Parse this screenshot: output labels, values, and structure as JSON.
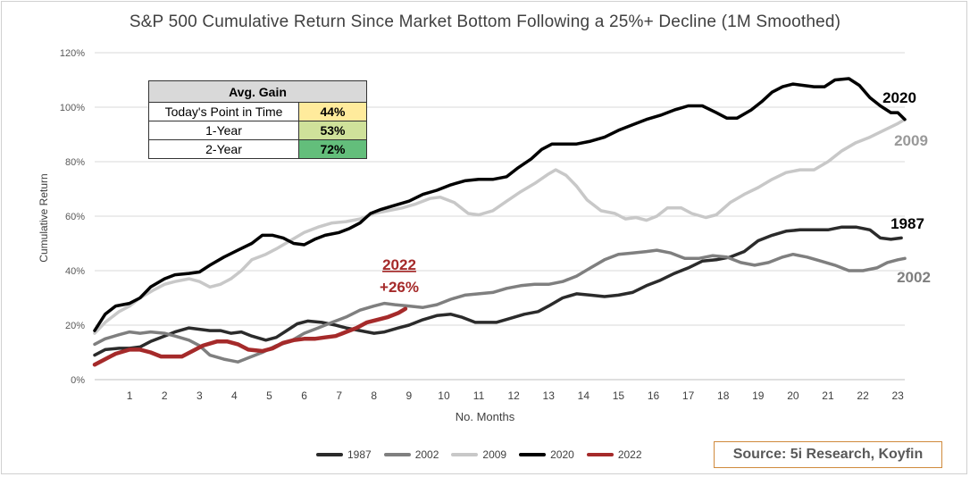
{
  "chart_data": {
    "type": "line",
    "title": "S&P 500 Cumulative Return Since Market Bottom Following a 25%+ Decline (1M Smoothed)",
    "xlabel": "No. Months",
    "ylabel": "Cumulative Return",
    "xlim": [
      0,
      23.2
    ],
    "ylim": [
      0,
      120
    ],
    "x_ticks": [
      1,
      2,
      3,
      4,
      5,
      6,
      7,
      8,
      9,
      10,
      11,
      12,
      13,
      14,
      15,
      16,
      17,
      18,
      19,
      20,
      21,
      22,
      23
    ],
    "y_ticks": [
      0,
      20,
      40,
      60,
      80,
      100,
      120
    ],
    "y_tick_labels": [
      "0%",
      "20%",
      "40%",
      "60%",
      "80%",
      "100%",
      "120%"
    ],
    "grid": "horizontal",
    "legend_position": "bottom",
    "series": [
      {
        "name": "1987",
        "color": "#2b2b2b",
        "points": [
          [
            0,
            9
          ],
          [
            0.3,
            11
          ],
          [
            0.7,
            11.5
          ],
          [
            1,
            11.5
          ],
          [
            1.3,
            12
          ],
          [
            1.6,
            14
          ],
          [
            2,
            16
          ],
          [
            2.3,
            17.5
          ],
          [
            2.7,
            19
          ],
          [
            3,
            18.5
          ],
          [
            3.3,
            18
          ],
          [
            3.6,
            18
          ],
          [
            3.9,
            17
          ],
          [
            4.2,
            17.5
          ],
          [
            4.5,
            16
          ],
          [
            4.9,
            14.5
          ],
          [
            5.2,
            15.5
          ],
          [
            5.5,
            18
          ],
          [
            5.8,
            20.5
          ],
          [
            6.1,
            21.5
          ],
          [
            6.5,
            21
          ],
          [
            6.9,
            20
          ],
          [
            7.2,
            19
          ],
          [
            7.6,
            18
          ],
          [
            8,
            17
          ],
          [
            8.3,
            17.5
          ],
          [
            8.7,
            19
          ],
          [
            9,
            20
          ],
          [
            9.4,
            22
          ],
          [
            9.8,
            23.5
          ],
          [
            10.2,
            24
          ],
          [
            10.5,
            23
          ],
          [
            10.9,
            21
          ],
          [
            11.2,
            21
          ],
          [
            11.5,
            21
          ],
          [
            11.9,
            22.5
          ],
          [
            12.3,
            24
          ],
          [
            12.7,
            25
          ],
          [
            13,
            27
          ],
          [
            13.4,
            30
          ],
          [
            13.8,
            31.5
          ],
          [
            14.2,
            31
          ],
          [
            14.6,
            30.5
          ],
          [
            15,
            31
          ],
          [
            15.4,
            32
          ],
          [
            15.8,
            34.5
          ],
          [
            16.2,
            36.5
          ],
          [
            16.6,
            39
          ],
          [
            17,
            41
          ],
          [
            17.4,
            43.5
          ],
          [
            17.8,
            44
          ],
          [
            18.2,
            45
          ],
          [
            18.6,
            47
          ],
          [
            19,
            51
          ],
          [
            19.4,
            53
          ],
          [
            19.8,
            54.5
          ],
          [
            20.2,
            55
          ],
          [
            20.6,
            55
          ],
          [
            21,
            55
          ],
          [
            21.4,
            56
          ],
          [
            21.8,
            56
          ],
          [
            22.2,
            55
          ],
          [
            22.5,
            52
          ],
          [
            22.8,
            51.5
          ],
          [
            23.1,
            52
          ]
        ]
      },
      {
        "name": "2002",
        "color": "#7f7f7f",
        "points": [
          [
            0,
            13
          ],
          [
            0.3,
            15
          ],
          [
            0.7,
            16.5
          ],
          [
            1,
            17.5
          ],
          [
            1.3,
            17
          ],
          [
            1.6,
            17.5
          ],
          [
            2,
            17
          ],
          [
            2.3,
            16
          ],
          [
            2.7,
            14.5
          ],
          [
            3,
            12.5
          ],
          [
            3.3,
            9
          ],
          [
            3.7,
            7.5
          ],
          [
            4.1,
            6.5
          ],
          [
            4.4,
            8
          ],
          [
            4.8,
            10
          ],
          [
            5.2,
            12.5
          ],
          [
            5.6,
            14
          ],
          [
            6,
            17
          ],
          [
            6.4,
            19
          ],
          [
            6.8,
            21
          ],
          [
            7.2,
            23
          ],
          [
            7.6,
            25.5
          ],
          [
            8,
            27
          ],
          [
            8.3,
            28
          ],
          [
            8.6,
            27.5
          ],
          [
            9,
            27
          ],
          [
            9.4,
            26.5
          ],
          [
            9.8,
            27.5
          ],
          [
            10.2,
            29.5
          ],
          [
            10.6,
            31
          ],
          [
            11,
            31.5
          ],
          [
            11.4,
            32
          ],
          [
            11.8,
            33.5
          ],
          [
            12.2,
            34.5
          ],
          [
            12.6,
            35
          ],
          [
            13,
            35
          ],
          [
            13.4,
            36
          ],
          [
            13.8,
            38
          ],
          [
            14.2,
            41
          ],
          [
            14.6,
            44
          ],
          [
            15,
            46
          ],
          [
            15.4,
            46.5
          ],
          [
            15.8,
            47
          ],
          [
            16.1,
            47.5
          ],
          [
            16.5,
            46.5
          ],
          [
            16.9,
            44.5
          ],
          [
            17.3,
            44.5
          ],
          [
            17.7,
            45.5
          ],
          [
            18.1,
            45
          ],
          [
            18.5,
            43
          ],
          [
            18.9,
            42
          ],
          [
            19.3,
            43
          ],
          [
            19.7,
            45
          ],
          [
            20,
            46
          ],
          [
            20.4,
            45
          ],
          [
            20.8,
            43.5
          ],
          [
            21.2,
            42
          ],
          [
            21.6,
            40
          ],
          [
            22,
            40
          ],
          [
            22.4,
            41
          ],
          [
            22.7,
            43
          ],
          [
            23,
            44
          ],
          [
            23.2,
            44.5
          ]
        ]
      },
      {
        "name": "2009",
        "color": "#c8c8c8",
        "points": [
          [
            0,
            17
          ],
          [
            0.3,
            21
          ],
          [
            0.7,
            25
          ],
          [
            1,
            27
          ],
          [
            1.3,
            30
          ],
          [
            1.7,
            33
          ],
          [
            2,
            35
          ],
          [
            2.3,
            36
          ],
          [
            2.7,
            37
          ],
          [
            3,
            36
          ],
          [
            3.3,
            34
          ],
          [
            3.6,
            35
          ],
          [
            3.9,
            37
          ],
          [
            4.2,
            40
          ],
          [
            4.5,
            44
          ],
          [
            4.9,
            46
          ],
          [
            5.2,
            48
          ],
          [
            5.6,
            51
          ],
          [
            6,
            54
          ],
          [
            6.4,
            56
          ],
          [
            6.8,
            57.5
          ],
          [
            7.2,
            58
          ],
          [
            7.6,
            59
          ],
          [
            8,
            61
          ],
          [
            8.4,
            62
          ],
          [
            8.8,
            63
          ],
          [
            9.2,
            64.5
          ],
          [
            9.6,
            66.5
          ],
          [
            9.9,
            67
          ],
          [
            10.3,
            65
          ],
          [
            10.7,
            61
          ],
          [
            11,
            60.5
          ],
          [
            11.4,
            62
          ],
          [
            11.8,
            65.5
          ],
          [
            12.2,
            69
          ],
          [
            12.6,
            72
          ],
          [
            13,
            75.5
          ],
          [
            13.2,
            77
          ],
          [
            13.5,
            75
          ],
          [
            13.8,
            71
          ],
          [
            14.1,
            66
          ],
          [
            14.5,
            62
          ],
          [
            14.9,
            61
          ],
          [
            15.2,
            59
          ],
          [
            15.5,
            59.5
          ],
          [
            15.8,
            58.5
          ],
          [
            16.1,
            60
          ],
          [
            16.4,
            63
          ],
          [
            16.8,
            63
          ],
          [
            17.1,
            61
          ],
          [
            17.5,
            59.5
          ],
          [
            17.8,
            60.5
          ],
          [
            18.2,
            65
          ],
          [
            18.6,
            68
          ],
          [
            19,
            70.5
          ],
          [
            19.4,
            73.5
          ],
          [
            19.8,
            76
          ],
          [
            20.2,
            77
          ],
          [
            20.6,
            77
          ],
          [
            21,
            80
          ],
          [
            21.4,
            84
          ],
          [
            21.8,
            87
          ],
          [
            22.2,
            89
          ],
          [
            22.6,
            91.5
          ],
          [
            23,
            94
          ],
          [
            23.2,
            95.5
          ]
        ]
      },
      {
        "name": "2020",
        "color": "#000000",
        "points": [
          [
            0,
            18
          ],
          [
            0.3,
            24
          ],
          [
            0.6,
            27
          ],
          [
            1,
            28
          ],
          [
            1.3,
            30
          ],
          [
            1.6,
            34
          ],
          [
            2,
            37
          ],
          [
            2.3,
            38.5
          ],
          [
            2.7,
            39
          ],
          [
            3,
            39.5
          ],
          [
            3.3,
            42
          ],
          [
            3.7,
            45
          ],
          [
            4.1,
            47.5
          ],
          [
            4.5,
            50
          ],
          [
            4.8,
            53
          ],
          [
            5.1,
            53
          ],
          [
            5.4,
            52
          ],
          [
            5.7,
            50
          ],
          [
            6,
            49.5
          ],
          [
            6.3,
            51.5
          ],
          [
            6.6,
            53
          ],
          [
            7,
            54
          ],
          [
            7.3,
            55.5
          ],
          [
            7.6,
            57.5
          ],
          [
            7.9,
            61
          ],
          [
            8.2,
            62.5
          ],
          [
            8.6,
            64
          ],
          [
            9,
            65.5
          ],
          [
            9.4,
            68
          ],
          [
            9.8,
            69.5
          ],
          [
            10.2,
            71.5
          ],
          [
            10.6,
            73
          ],
          [
            11,
            73.5
          ],
          [
            11.4,
            73.5
          ],
          [
            11.8,
            74.5
          ],
          [
            12.1,
            77.5
          ],
          [
            12.5,
            81
          ],
          [
            12.8,
            84.5
          ],
          [
            13.1,
            86.5
          ],
          [
            13.4,
            86.5
          ],
          [
            13.8,
            86.5
          ],
          [
            14.2,
            87.5
          ],
          [
            14.6,
            89
          ],
          [
            15,
            91.5
          ],
          [
            15.4,
            93.5
          ],
          [
            15.8,
            95.5
          ],
          [
            16.2,
            97
          ],
          [
            16.6,
            99
          ],
          [
            17,
            100.5
          ],
          [
            17.4,
            100.5
          ],
          [
            17.8,
            98
          ],
          [
            18.1,
            96
          ],
          [
            18.4,
            96
          ],
          [
            18.8,
            99
          ],
          [
            19.1,
            102
          ],
          [
            19.4,
            105.5
          ],
          [
            19.7,
            107.5
          ],
          [
            20,
            108.5
          ],
          [
            20.3,
            108
          ],
          [
            20.6,
            107.5
          ],
          [
            20.9,
            107.5
          ],
          [
            21.2,
            110
          ],
          [
            21.6,
            110.5
          ],
          [
            21.9,
            108
          ],
          [
            22.2,
            103.5
          ],
          [
            22.5,
            100.5
          ],
          [
            22.8,
            98
          ],
          [
            23,
            98
          ],
          [
            23.2,
            95.5
          ]
        ]
      },
      {
        "name": "2022",
        "color": "#a52a2a",
        "points": [
          [
            0,
            5.5
          ],
          [
            0.3,
            7.5
          ],
          [
            0.6,
            9.5
          ],
          [
            1,
            11
          ],
          [
            1.3,
            11
          ],
          [
            1.6,
            10
          ],
          [
            1.9,
            8.5
          ],
          [
            2.2,
            8.5
          ],
          [
            2.5,
            8.5
          ],
          [
            2.8,
            10.5
          ],
          [
            3.1,
            12.5
          ],
          [
            3.5,
            14
          ],
          [
            3.8,
            14
          ],
          [
            4.1,
            13
          ],
          [
            4.4,
            11
          ],
          [
            4.8,
            10.5
          ],
          [
            5.1,
            11.5
          ],
          [
            5.4,
            13.5
          ],
          [
            5.7,
            14.5
          ],
          [
            6,
            15
          ],
          [
            6.3,
            15
          ],
          [
            6.6,
            15.5
          ],
          [
            6.9,
            16
          ],
          [
            7.2,
            17.5
          ],
          [
            7.5,
            19
          ],
          [
            7.8,
            21
          ],
          [
            8.1,
            22
          ],
          [
            8.4,
            23
          ],
          [
            8.7,
            24.5
          ],
          [
            8.9,
            26
          ]
        ]
      }
    ]
  },
  "avg_gain_table": {
    "header": "Avg. Gain",
    "rows": [
      {
        "label": "Today's Point in Time",
        "value": "44%",
        "color": "#ffeb9c"
      },
      {
        "label": "1-Year",
        "value": "53%",
        "color": "#cfe19a"
      },
      {
        "label": "2-Year",
        "value": "72%",
        "color": "#63be7b"
      }
    ]
  },
  "annotations": {
    "s2020": "2020",
    "s2009": "2009",
    "s1987": "1987",
    "s2002": "2002",
    "s2022_year": "2022",
    "s2022_gain": "+26%"
  },
  "legend": [
    "1987",
    "2002",
    "2009",
    "2020",
    "2022"
  ],
  "source": "Source: 5i Research, Koyfin"
}
